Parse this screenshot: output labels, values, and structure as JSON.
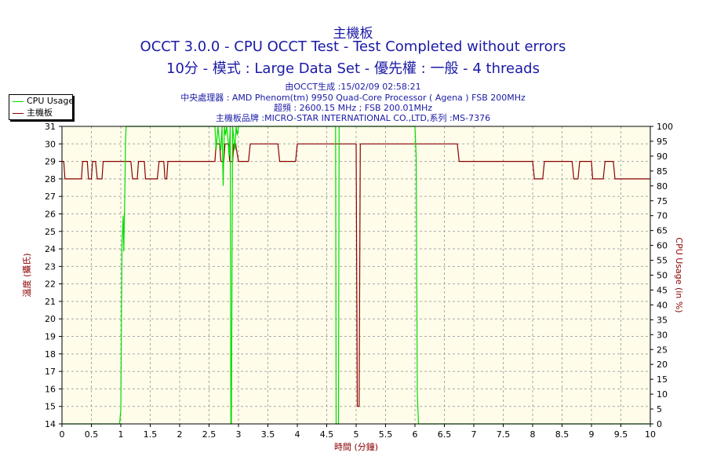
{
  "header": {
    "title": "主機板",
    "line2": "OCCT 3.0.0 - CPU OCCT Test - Test Completed without errors",
    "line3": "10分 - 模式 : Large Data Set - 優先權 : 一般 - 4 threads",
    "info": [
      "由OCCT生成 :15/02/09 02:58:21",
      "中央處理器 : AMD Phenom(tm) 9950 Quad-Core Processor ( Agena ) FSB 200MHz",
      "超頻 : 2600.15 MHz ; FSB 200.01MHz",
      "主機板品牌 :MICRO-STAR INTERNATIONAL CO.,LTD,系列 :MS-7376"
    ]
  },
  "legend": {
    "items": [
      {
        "label": "CPU Usage",
        "color": "#00dd00"
      },
      {
        "label": "主機板",
        "color": "#8b0000"
      }
    ]
  },
  "chart_data": {
    "type": "line",
    "xlabel": "時間 (分鐘)",
    "ylabel_left": "溫度 (攝氏)",
    "ylabel_right": "CPU Usage (in %)",
    "xlim": [
      0,
      10
    ],
    "ylim_left": [
      14,
      31
    ],
    "ylim_right": [
      0,
      100
    ],
    "x_ticks": [
      "0",
      "0.5",
      "1",
      "1.5",
      "2",
      "2.5",
      "3",
      "3.5",
      "4",
      "4.5",
      "5",
      "5.5",
      "6",
      "6.5",
      "7",
      "7.5",
      "8",
      "8.5",
      "9",
      "9.5",
      "10"
    ],
    "y_ticks_left": [
      "14",
      "15",
      "16",
      "17",
      "18",
      "19",
      "20",
      "21",
      "22",
      "23",
      "24",
      "25",
      "26",
      "27",
      "28",
      "29",
      "30",
      "31"
    ],
    "y_ticks_right": [
      "0",
      "5",
      "10",
      "15",
      "20",
      "25",
      "30",
      "35",
      "40",
      "45",
      "50",
      "55",
      "60",
      "65",
      "70",
      "75",
      "80",
      "85",
      "90",
      "95",
      "100"
    ],
    "grid": true,
    "legend_position": "top-left",
    "series": [
      {
        "name": "主機板",
        "axis": "left",
        "color": "#8b0000",
        "x": [
          0,
          0.03,
          0.05,
          0.33,
          0.35,
          0.43,
          0.45,
          0.5,
          0.52,
          0.57,
          0.6,
          0.68,
          0.7,
          1.17,
          1.2,
          1.28,
          1.3,
          1.4,
          1.42,
          1.62,
          1.65,
          1.73,
          1.75,
          1.78,
          1.8,
          1.97,
          2.0,
          2.6,
          2.62,
          2.68,
          2.7,
          2.75,
          2.77,
          2.83,
          2.85,
          2.9,
          2.92,
          2.95,
          3.0,
          3.17,
          3.2,
          3.67,
          3.7,
          3.97,
          4.0,
          5.0,
          5.02,
          5.05,
          5.07,
          5.1,
          5.12,
          6.0,
          6.72,
          6.75,
          7.33,
          8.0,
          8.03,
          8.17,
          8.2,
          8.67,
          8.7,
          8.77,
          8.8,
          9.0,
          9.02,
          9.2,
          9.23,
          9.37,
          9.4,
          9.82,
          9.85,
          10.0
        ],
        "values": [
          29,
          29,
          28,
          28,
          29,
          29,
          28,
          28,
          29,
          29,
          28,
          28,
          29,
          29,
          28,
          28,
          29,
          29,
          28,
          28,
          29,
          29,
          28,
          28,
          29,
          29,
          29,
          29,
          30,
          30,
          29,
          29,
          30,
          30,
          29,
          29,
          30,
          30,
          29,
          29,
          30,
          30,
          29,
          29,
          30,
          30,
          15,
          15,
          30,
          30,
          30,
          30,
          30,
          29,
          29,
          29,
          28,
          28,
          29,
          29,
          28,
          28,
          29,
          29,
          28,
          28,
          29,
          29,
          28,
          28,
          28,
          28
        ]
      },
      {
        "name": "CPU Usage",
        "axis": "right",
        "color": "#00dd00",
        "x": [
          0,
          0.97,
          0.98,
          1.0,
          1.02,
          1.04,
          1.05,
          1.07,
          1.08,
          1.09,
          1.1,
          1.13,
          2.6,
          2.62,
          2.65,
          2.67,
          2.7,
          2.72,
          2.74,
          2.76,
          2.78,
          2.8,
          2.82,
          2.84,
          2.86,
          2.87,
          2.88,
          2.9,
          2.92,
          2.94,
          2.96,
          2.98,
          3.0,
          4.65,
          4.66,
          4.7,
          4.71,
          6.0,
          6.02,
          6.04,
          6.06,
          10.0
        ],
        "values": [
          0,
          0,
          0,
          5,
          60,
          70,
          58,
          80,
          95,
          100,
          100,
          100,
          100,
          92,
          100,
          96,
          92,
          100,
          80,
          100,
          97,
          100,
          96,
          90,
          100,
          0,
          0,
          100,
          96,
          92,
          100,
          97,
          100,
          100,
          0,
          0,
          100,
          100,
          90,
          10,
          0,
          0
        ]
      }
    ]
  }
}
